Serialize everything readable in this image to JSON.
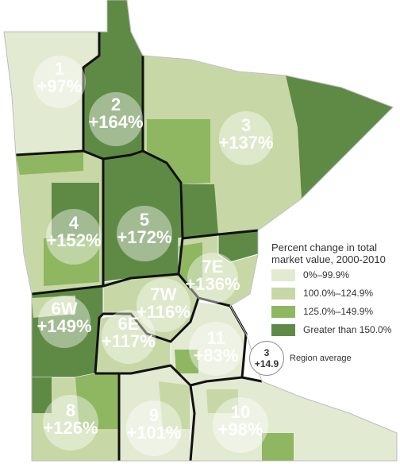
{
  "colors": {
    "tier1": "#e3ead2",
    "tier2": "#c7d8a6",
    "tier3": "#8fb661",
    "tier4": "#5f8a46",
    "border_thick": "#111111",
    "border_thin": "#ffffff"
  },
  "regions": [
    {
      "num": "1",
      "pct": "+97%"
    },
    {
      "num": "2",
      "pct": "+164%"
    },
    {
      "num": "3",
      "pct": "+137%"
    },
    {
      "num": "4",
      "pct": "+152%"
    },
    {
      "num": "5",
      "pct": "+172%"
    },
    {
      "num": "7E",
      "pct": "+136%"
    },
    {
      "num": "7W",
      "pct": "+116%"
    },
    {
      "num": "6W",
      "pct": "+149%"
    },
    {
      "num": "6E",
      "pct": "+117%"
    },
    {
      "num": "11",
      "pct": "+83%"
    },
    {
      "num": "8",
      "pct": "+126%"
    },
    {
      "num": "9",
      "pct": "+101%"
    },
    {
      "num": "10",
      "pct": "+98%"
    }
  ],
  "legend": {
    "title_line1": "Percent change in total",
    "title_line2": "market value, 2000-2010",
    "items": [
      "0%–99.9%",
      "100.0%–124.9%",
      "125.0%–149.9%",
      "Greater than 150.0%"
    ],
    "avg_num": "3",
    "avg_value": "+14.9",
    "avg_label": "Region average"
  }
}
